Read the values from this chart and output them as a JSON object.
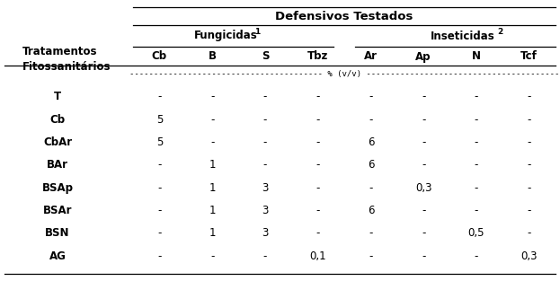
{
  "title": "Defensivos Testados",
  "col_header1_left": "Tratamentos\nFitossanitários",
  "col_group1_label": "Fungicidas",
  "col_group1_super": "1",
  "col_group2_label": "Inseticidas",
  "col_group2_super": "2",
  "col_subheaders": [
    "Cb",
    "B",
    "S",
    "Tbz",
    "Ar",
    "Ap",
    "N",
    "Tcf"
  ],
  "percent_label": "% (v/v)",
  "row_labels": [
    "T",
    "Cb",
    "CbAr",
    "BAr",
    "BSAp",
    "BSAr",
    "BSN",
    "AG"
  ],
  "table_data": [
    [
      "-",
      "-",
      "-",
      "-",
      "-",
      "-",
      "-",
      "-"
    ],
    [
      "5",
      "-",
      "-",
      "-",
      "-",
      "-",
      "-",
      "-"
    ],
    [
      "5",
      "-",
      "-",
      "-",
      "6",
      "-",
      "-",
      "-"
    ],
    [
      "-",
      "1",
      "-",
      "-",
      "6",
      "-",
      "-",
      "-"
    ],
    [
      "-",
      "1",
      "3",
      "-",
      "-",
      "0,3",
      "-",
      "-"
    ],
    [
      "-",
      "1",
      "3",
      "-",
      "6",
      "-",
      "-",
      "-"
    ],
    [
      "-",
      "1",
      "3",
      "-",
      "-",
      "-",
      "0,5",
      "-"
    ],
    [
      "-",
      "-",
      "-",
      "0,1",
      "-",
      "-",
      "-",
      "0,3"
    ]
  ],
  "bg_color": "#ffffff",
  "text_color": "#000000",
  "line_color": "#000000",
  "font_size": 8.5,
  "bold_font_size": 8.5,
  "title_font_size": 9.5
}
